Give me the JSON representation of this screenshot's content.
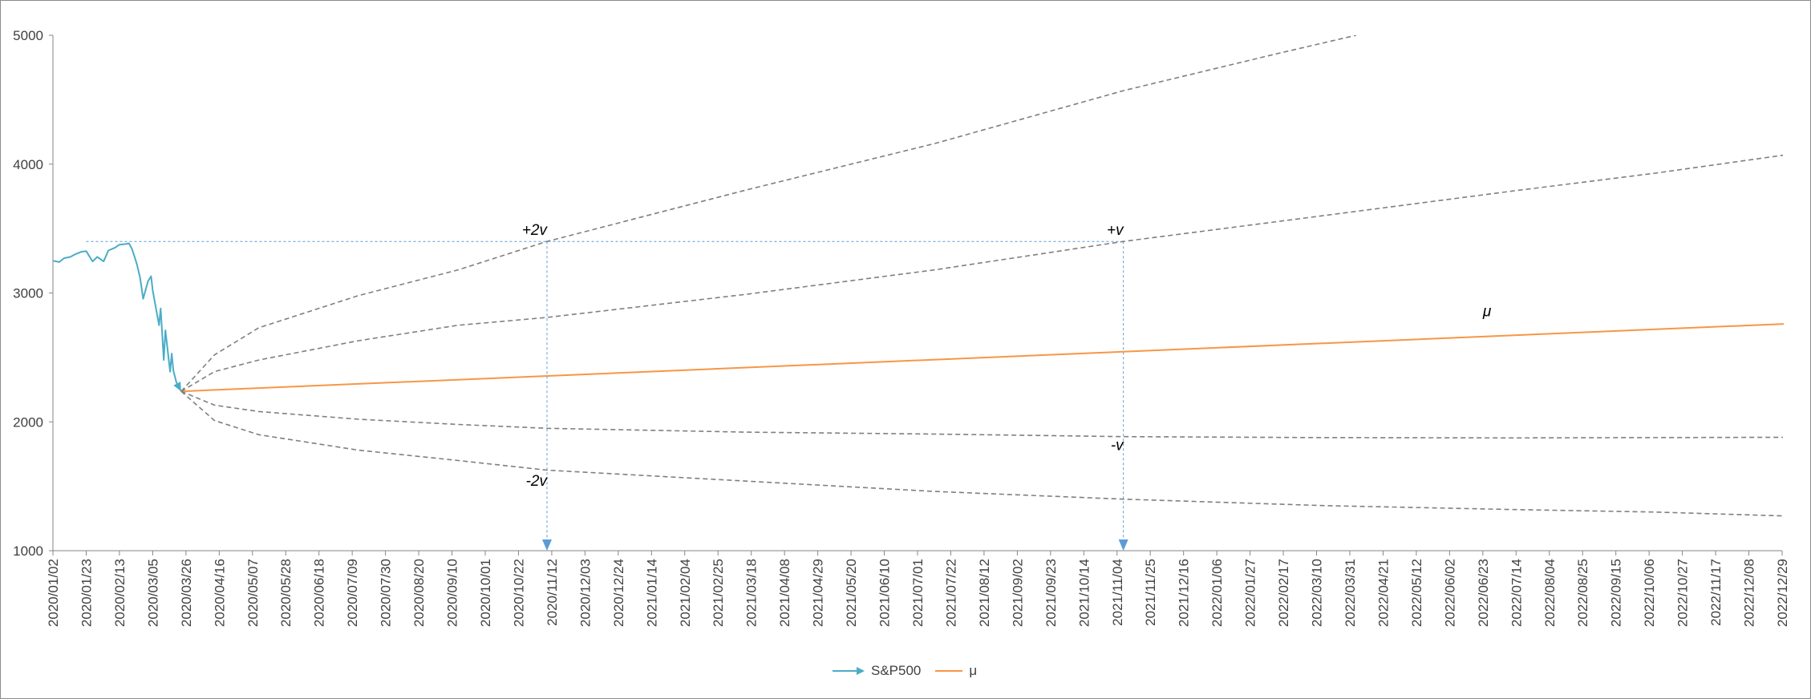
{
  "chart_data": {
    "type": "line",
    "y_axis": {
      "min": 1000,
      "max": 5000,
      "ticks": [
        1000,
        2000,
        3000,
        4000,
        5000
      ]
    },
    "x_axis": {
      "tick_labels": [
        "2020/01/02",
        "2020/01/23",
        "2020/02/13",
        "2020/03/05",
        "2020/03/26",
        "2020/04/16",
        "2020/05/07",
        "2020/05/28",
        "2020/06/18",
        "2020/07/09",
        "2020/07/30",
        "2020/08/20",
        "2020/09/10",
        "2020/10/01",
        "2020/10/22",
        "2020/11/12",
        "2020/12/03",
        "2020/12/24",
        "2021/01/14",
        "2021/02/04",
        "2021/02/25",
        "2021/03/18",
        "2021/04/08",
        "2021/04/29",
        "2021/05/20",
        "2021/06/10",
        "2021/07/01",
        "2021/07/22",
        "2021/08/12",
        "2021/09/02",
        "2021/09/23",
        "2021/10/14",
        "2021/11/04",
        "2021/11/25",
        "2021/12/16",
        "2022/01/06",
        "2022/01/27",
        "2022/02/17",
        "2022/03/10",
        "2022/03/31",
        "2022/04/21",
        "2022/05/12",
        "2022/06/02",
        "2022/06/23",
        "2022/07/14",
        "2022/08/04",
        "2022/08/25",
        "2022/09/15",
        "2022/10/06",
        "2022/10/27",
        "2022/11/17",
        "2022/12/08",
        "2022/12/29"
      ]
    },
    "legend": {
      "position": "bottom"
    },
    "series": [
      {
        "name": "S&P500",
        "color": "#4bacc6",
        "marker": "arrow",
        "points": [
          [
            "2020/01/02",
            3250
          ],
          [
            "2020/01/06",
            3240
          ],
          [
            "2020/01/09",
            3270
          ],
          [
            "2020/01/13",
            3280
          ],
          [
            "2020/01/16",
            3300
          ],
          [
            "2020/01/20",
            3320
          ],
          [
            "2020/01/23",
            3325
          ],
          [
            "2020/01/27",
            3245
          ],
          [
            "2020/01/30",
            3280
          ],
          [
            "2020/02/03",
            3245
          ],
          [
            "2020/02/06",
            3330
          ],
          [
            "2020/02/10",
            3350
          ],
          [
            "2020/02/13",
            3375
          ],
          [
            "2020/02/17",
            3380
          ],
          [
            "2020/02/19",
            3385
          ],
          [
            "2020/02/21",
            3340
          ],
          [
            "2020/02/24",
            3225
          ],
          [
            "2020/02/26",
            3120
          ],
          [
            "2020/02/28",
            2955
          ],
          [
            "2020/03/02",
            3090
          ],
          [
            "2020/03/04",
            3130
          ],
          [
            "2020/03/05",
            3020
          ],
          [
            "2020/03/09",
            2750
          ],
          [
            "2020/03/10",
            2880
          ],
          [
            "2020/03/12",
            2480
          ],
          [
            "2020/03/13",
            2710
          ],
          [
            "2020/03/16",
            2390
          ],
          [
            "2020/03/17",
            2530
          ],
          [
            "2020/03/18",
            2400
          ],
          [
            "2020/03/20",
            2305
          ],
          [
            "2020/03/23",
            2237
          ]
        ]
      },
      {
        "name": "μ",
        "color": "#f79646",
        "points": [
          [
            "2020/03/23",
            2237
          ],
          [
            "2022/12/30",
            2760
          ]
        ]
      },
      {
        "label": "+2v",
        "color": "#7f7f7f",
        "dashed": true,
        "points": [
          [
            "2020/03/23",
            2237
          ],
          [
            "2020/04/13",
            2520
          ],
          [
            "2020/05/11",
            2730
          ],
          [
            "2020/07/13",
            2980
          ],
          [
            "2020/09/14",
            3180
          ],
          [
            "2020/11/09",
            3400
          ],
          [
            "2021/03/15",
            3800
          ],
          [
            "2021/07/12",
            4160
          ],
          [
            "2021/11/08",
            4570
          ],
          [
            "2022/02/14",
            4860
          ],
          [
            "2022/04/04",
            5000
          ]
        ]
      },
      {
        "label": "+v",
        "color": "#7f7f7f",
        "dashed": true,
        "points": [
          [
            "2020/03/23",
            2237
          ],
          [
            "2020/04/13",
            2390
          ],
          [
            "2020/05/11",
            2480
          ],
          [
            "2020/07/13",
            2630
          ],
          [
            "2020/09/14",
            2750
          ],
          [
            "2020/11/09",
            2810
          ],
          [
            "2021/03/15",
            2990
          ],
          [
            "2021/07/12",
            3180
          ],
          [
            "2021/11/08",
            3400
          ],
          [
            "2022/03/14",
            3600
          ],
          [
            "2022/07/11",
            3790
          ],
          [
            "2022/10/10",
            3930
          ],
          [
            "2022/12/30",
            4070
          ]
        ]
      },
      {
        "label": "-v",
        "color": "#7f7f7f",
        "dashed": true,
        "points": [
          [
            "2020/03/23",
            2237
          ],
          [
            "2020/04/13",
            2130
          ],
          [
            "2020/05/11",
            2080
          ],
          [
            "2020/07/13",
            2020
          ],
          [
            "2020/09/14",
            1980
          ],
          [
            "2020/11/09",
            1950
          ],
          [
            "2021/03/15",
            1920
          ],
          [
            "2021/07/12",
            1905
          ],
          [
            "2021/11/08",
            1885
          ],
          [
            "2022/03/14",
            1878
          ],
          [
            "2022/07/11",
            1875
          ],
          [
            "2022/12/30",
            1880
          ]
        ]
      },
      {
        "label": "-2v",
        "color": "#7f7f7f",
        "dashed": true,
        "points": [
          [
            "2020/03/23",
            2237
          ],
          [
            "2020/04/13",
            2010
          ],
          [
            "2020/05/11",
            1900
          ],
          [
            "2020/07/13",
            1780
          ],
          [
            "2020/09/14",
            1700
          ],
          [
            "2020/11/09",
            1625
          ],
          [
            "2021/03/15",
            1540
          ],
          [
            "2021/07/12",
            1460
          ],
          [
            "2021/11/08",
            1400
          ],
          [
            "2022/03/14",
            1350
          ],
          [
            "2022/07/11",
            1320
          ],
          [
            "2022/10/10",
            1300
          ],
          [
            "2022/12/30",
            1270
          ]
        ]
      }
    ],
    "reference_lines": {
      "level": 3400,
      "from": "2020/01/23",
      "verticals": [
        "2020/11/09",
        "2021/11/08"
      ],
      "color": "#5b9bd5"
    },
    "annotations": [
      {
        "text": "+2v",
        "x": "2020/11/09",
        "y": 3450,
        "anchor": "end"
      },
      {
        "text": "+v",
        "x": "2021/11/08",
        "y": 3450,
        "anchor": "end"
      },
      {
        "text": "μ",
        "x": "2022/06/23",
        "y": 2820,
        "anchor": "start"
      },
      {
        "text": "-v",
        "x": "2021/11/08",
        "y": 1780,
        "anchor": "end"
      },
      {
        "text": "-2v",
        "x": "2020/11/09",
        "y": 1505,
        "anchor": "end"
      }
    ]
  }
}
